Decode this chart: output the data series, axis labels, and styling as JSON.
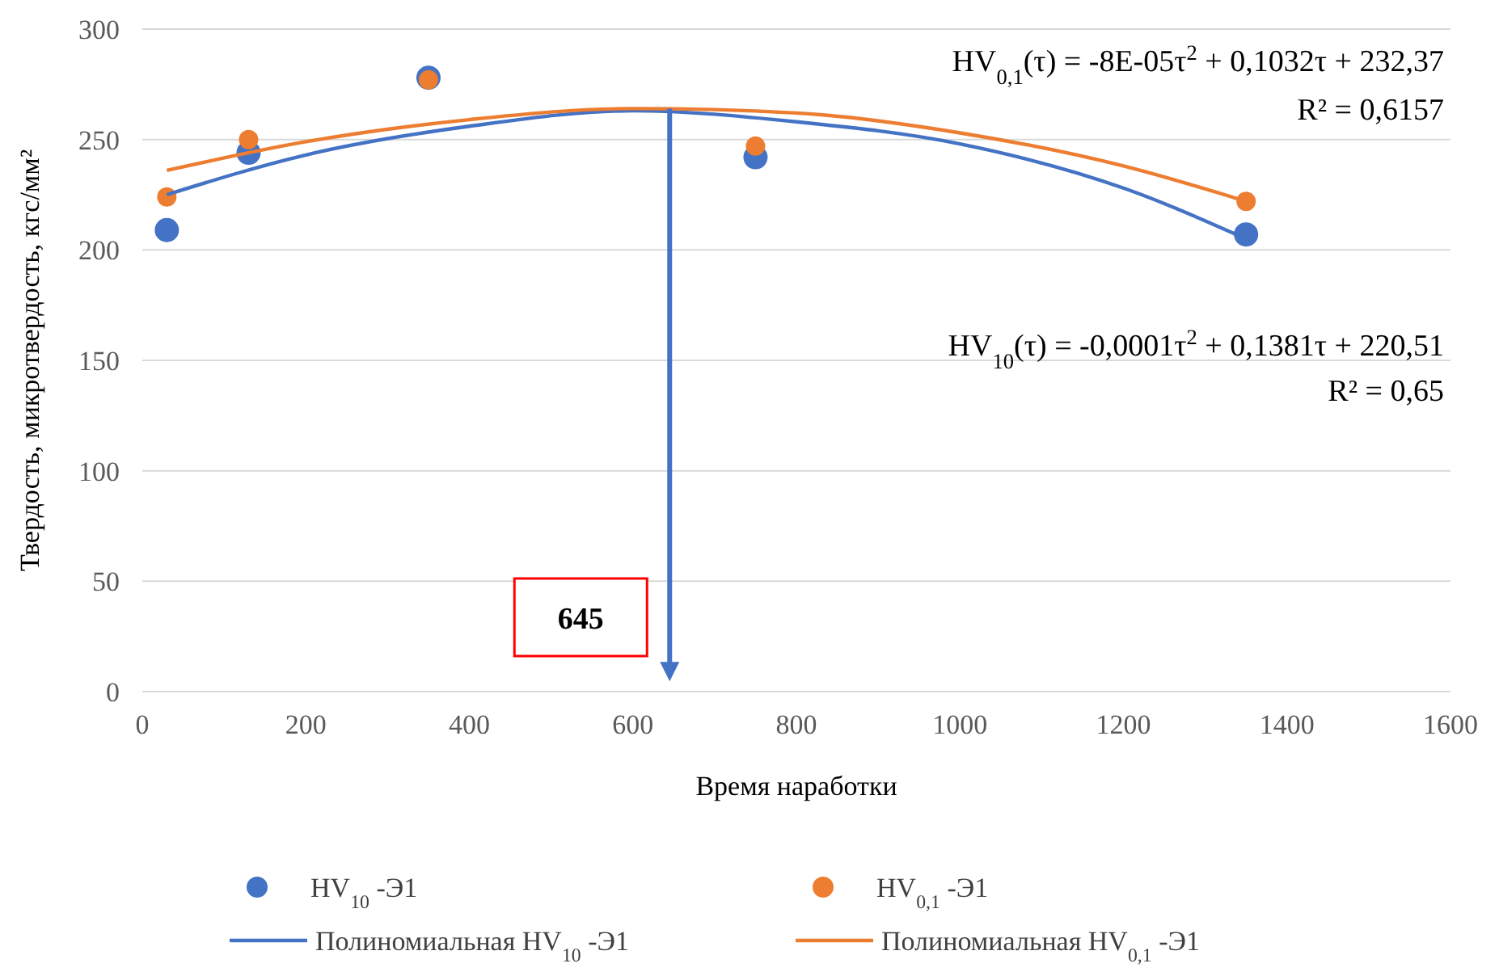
{
  "chart_data": {
    "type": "scatter",
    "xlabel": "Время наработки",
    "ylabel": "Твердость, микротвердость, кгс/мм²",
    "x": [
      30,
      130,
      350,
      750,
      1350
    ],
    "series": [
      {
        "name": "HV$_{10}$ -Э1",
        "color": "#4472c4",
        "marker": "circle",
        "values": [
          209,
          244,
          278,
          242,
          207
        ]
      },
      {
        "name": "HV$_{0,1}$ -Э1",
        "color": "#ed7d31",
        "marker": "circle",
        "values": [
          224,
          250,
          277,
          247,
          222
        ]
      },
      {
        "name": "Полиномиальная   HV$_{10}$ -Э1",
        "type": "line",
        "color": "#4472c4",
        "marker": "none",
        "x": [
          30,
          200,
          400,
          600,
          800,
          1000,
          1200,
          1350
        ],
        "values": [
          225,
          243,
          256,
          263,
          258,
          248,
          228,
          205
        ]
      },
      {
        "name": "Полиномиальная   HV$_{0,1}$ -Э1",
        "type": "line",
        "color": "#ed7d31",
        "marker": "none",
        "x": [
          30,
          200,
          400,
          600,
          800,
          1000,
          1200,
          1350
        ],
        "values": [
          236,
          249,
          259,
          264,
          262,
          253,
          238,
          222
        ]
      }
    ],
    "xlim": [
      0,
      1600
    ],
    "xticks": [
      0,
      200,
      400,
      600,
      800,
      1000,
      1200,
      1400,
      1600
    ],
    "ylim": [
      0,
      300
    ],
    "yticks": [
      0,
      50,
      100,
      150,
      200,
      250,
      300
    ],
    "grid": "y",
    "legend": "bottom",
    "ref_lines": [
      {
        "axis": "x",
        "value": 645,
        "label": "645",
        "color": "#4472c4"
      }
    ],
    "annotations": [
      "HV$_{0,1}$(τ) = -8E-05τ$^{2}$ + 0,1032τ + 232,37",
      "R² = 0,6157",
      "HV$_{10}$(τ) = -0,0001τ$^{2}$ + 0,1381τ + 220,51",
      "R² = 0,65"
    ]
  }
}
